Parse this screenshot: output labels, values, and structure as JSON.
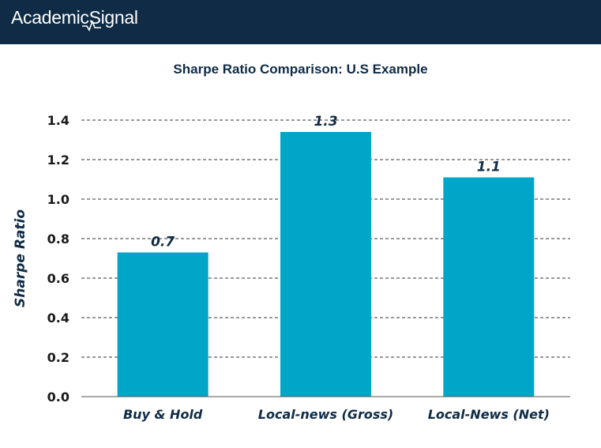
{
  "header": {
    "logo_text": "AcademicSignal",
    "background": "#0f2b45"
  },
  "chart_data": {
    "type": "bar",
    "title": "Sharpe Ratio Comparison: U.S Example",
    "xlabel": "",
    "ylabel": "Sharpe Ratio",
    "categories": [
      "Buy & Hold",
      "Local-news (Gross)",
      "Local-News (Net)"
    ],
    "values": [
      0.73,
      1.34,
      1.11
    ],
    "data_labels": [
      "0.7",
      "1.3",
      "1.1"
    ],
    "ylim": [
      0,
      1.4
    ],
    "yticks": [
      "0.0",
      "0.2",
      "0.4",
      "0.6",
      "0.8",
      "1.0",
      "1.2",
      "1.4"
    ],
    "grid": "horizontal-dashed",
    "bar_color": "#00a6c8",
    "legend": "none"
  }
}
